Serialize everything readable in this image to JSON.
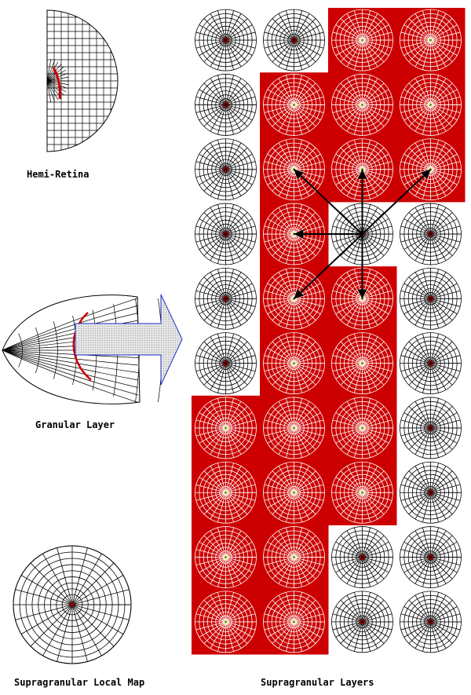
{
  "labels": {
    "hemi_retina": "Hemi-Retina",
    "granular_layer": "Granular Layer",
    "local_map": "Supragranular Local Map",
    "supragranular_layers": "Supragranular Layers"
  },
  "colors": {
    "highlight": "#cc0000",
    "grid_dark": "#000000",
    "grid_light": "#ffffff",
    "arrow_outline": "#2233cc",
    "arrow_fill": "#d9d9d9",
    "center_dot": "#8b0000",
    "center_light": "#f2f2c8"
  },
  "supragranular_grid": {
    "columns": 4,
    "rows": 10,
    "active_cells": [
      [
        0,
        2
      ],
      [
        0,
        3
      ],
      [
        1,
        1
      ],
      [
        1,
        2
      ],
      [
        1,
        3
      ],
      [
        2,
        1
      ],
      [
        2,
        2
      ],
      [
        2,
        3
      ],
      [
        3,
        1
      ],
      [
        4,
        1
      ],
      [
        4,
        2
      ],
      [
        5,
        1
      ],
      [
        5,
        2
      ],
      [
        6,
        0
      ],
      [
        6,
        1
      ],
      [
        6,
        2
      ],
      [
        7,
        0
      ],
      [
        7,
        1
      ],
      [
        7,
        2
      ],
      [
        8,
        0
      ],
      [
        8,
        1
      ],
      [
        9,
        0
      ],
      [
        9,
        1
      ]
    ],
    "connections_from": [
      3,
      2
    ],
    "connections_to": [
      [
        2,
        1
      ],
      [
        2,
        2
      ],
      [
        2,
        3
      ],
      [
        3,
        1
      ],
      [
        4,
        1
      ],
      [
        4,
        2
      ]
    ]
  }
}
